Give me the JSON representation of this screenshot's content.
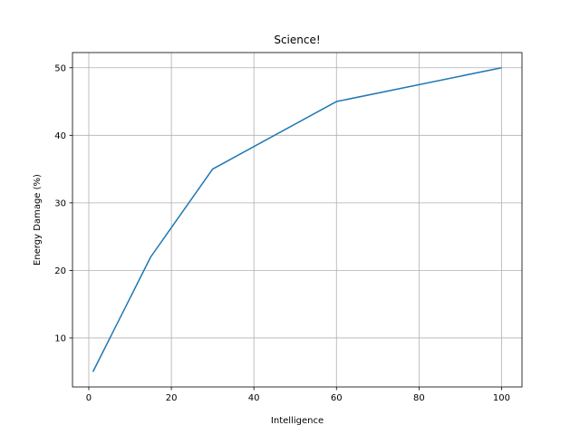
{
  "chart_data": {
    "type": "line",
    "title": "Science!",
    "x_label": "Intelligence",
    "y_label": "Energy Damage (%)",
    "x": [
      1,
      15,
      30,
      60,
      100
    ],
    "series": [
      {
        "color": "#1f77b4",
        "values": [
          5,
          22,
          35,
          45,
          50
        ]
      }
    ],
    "xlim": [
      -3.95,
      104.95
    ],
    "ylim": [
      2.75,
      52.25
    ],
    "xticks": [
      0,
      20,
      40,
      60,
      80,
      100
    ],
    "yticks": [
      10,
      20,
      30,
      40,
      50
    ],
    "grid": true
  }
}
